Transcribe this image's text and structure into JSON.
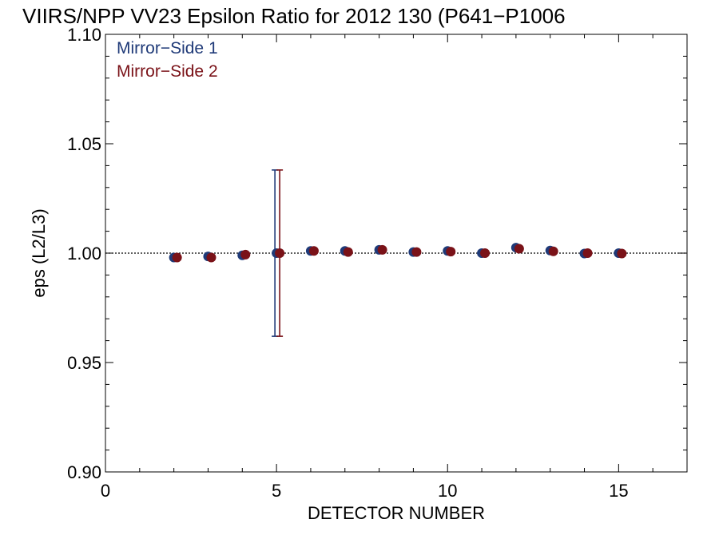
{
  "chart_data": {
    "type": "scatter",
    "title": "VIIRS/NPP VV23 Epsilon Ratio for 2012 130 (P641−P1006",
    "xlabel": "DETECTOR NUMBER",
    "ylabel": "eps (L2/L3)",
    "xlim": [
      0,
      17
    ],
    "ylim": [
      0.9,
      1.1
    ],
    "x_ticks": [
      "0",
      "5",
      "10",
      "15"
    ],
    "y_ticks": [
      "0.90",
      "0.95",
      "1.00",
      "1.05",
      "1.10"
    ],
    "reference_line": 1.0,
    "legend_position": "top-left",
    "series": [
      {
        "name": "Mirror−Side 1",
        "color": "#1f3a78",
        "x": [
          2,
          3,
          4,
          5,
          6,
          7,
          8,
          9,
          10,
          11,
          12,
          13,
          14,
          15
        ],
        "y": [
          0.998,
          0.9985,
          0.999,
          1.0,
          1.001,
          1.001,
          1.0015,
          1.0005,
          1.001,
          1.0,
          1.0025,
          1.0012,
          0.9998,
          1.0
        ],
        "error_bars": [
          null,
          null,
          null,
          [
            0.962,
            1.038
          ],
          null,
          null,
          null,
          null,
          null,
          null,
          null,
          null,
          null,
          null
        ]
      },
      {
        "name": "Mirror−Side 2",
        "color": "#7a1218",
        "x": [
          2,
          3,
          4,
          5,
          6,
          7,
          8,
          9,
          10,
          11,
          12,
          13,
          14,
          15
        ],
        "y": [
          0.998,
          0.998,
          0.9993,
          1.0,
          1.001,
          1.0005,
          1.0015,
          1.0005,
          1.0007,
          1.0,
          1.002,
          1.0008,
          1.0,
          0.9998
        ],
        "error_bars": [
          null,
          null,
          null,
          [
            0.962,
            1.038
          ],
          null,
          null,
          null,
          null,
          null,
          null,
          null,
          null,
          null,
          null
        ]
      }
    ]
  }
}
